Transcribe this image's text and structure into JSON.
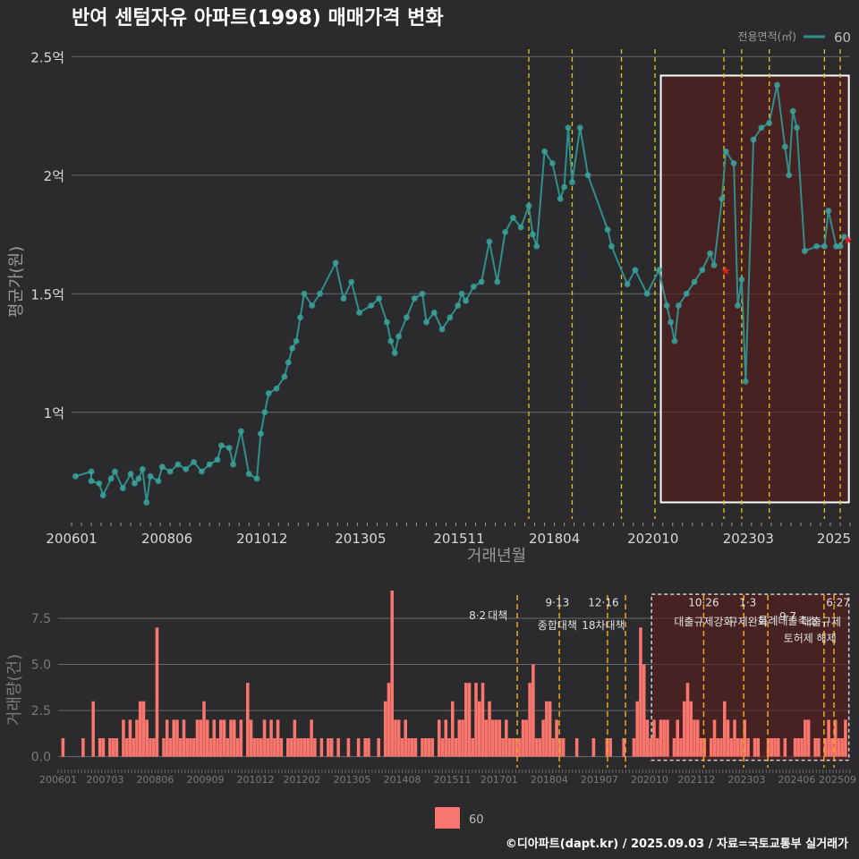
{
  "title": "반여 센텀자유 아파트(1998) 매매가격 변화",
  "footer": "©디아파트(dapt.kr) / 2025.09.03 / 자료=국토교통부 실거래가",
  "colors": {
    "background": "#2b2b2d",
    "grid": "#6a6a6a",
    "price_line": "#2f8f8a",
    "price_point": "#3aa39c",
    "volume_bar": "#f8766d",
    "policy_line": "#e6c619",
    "policy_line_lower": "#f0a81a",
    "highlight_fill": "#5a1d1d",
    "highlight_border": "#ffffff",
    "axis_text": "#d8d8d8",
    "muted_text": "#7a7a7a",
    "star": "#e02020"
  },
  "legend_top": {
    "title": "전용면적(㎡)",
    "label": "60"
  },
  "legend_bottom": {
    "label": "60"
  },
  "chart_data": [
    {
      "type": "line",
      "name": "price",
      "title": "반여 센텀자유 아파트(1998) 매매가격 변화",
      "xlabel": "거래년월",
      "ylabel": "평균가(원)",
      "xlim": [
        2006.0,
        2025.75
      ],
      "ylim": [
        0.55,
        2.55
      ],
      "yticks": [
        1.0,
        1.5,
        2.0,
        2.5
      ],
      "ytick_labels": [
        "1억",
        "1.5억",
        "2억",
        "2.5억"
      ],
      "xtick_values": [
        2006.0,
        2008.42,
        2010.83,
        2013.33,
        2015.83,
        2018.25,
        2020.75,
        2023.17,
        2025.67
      ],
      "xtick_labels": [
        "200601",
        "200806",
        "201012",
        "201305",
        "201511",
        "201804",
        "202010",
        "202303",
        "2025"
      ],
      "series": [
        {
          "name": "60",
          "points": [
            [
              2006.1,
              0.73
            ],
            [
              2006.5,
              0.75
            ],
            [
              2006.5,
              0.71
            ],
            [
              2006.7,
              0.7
            ],
            [
              2006.8,
              0.65
            ],
            [
              2007.0,
              0.72
            ],
            [
              2007.1,
              0.75
            ],
            [
              2007.3,
              0.68
            ],
            [
              2007.5,
              0.74
            ],
            [
              2007.6,
              0.7
            ],
            [
              2007.7,
              0.72
            ],
            [
              2007.8,
              0.76
            ],
            [
              2007.9,
              0.62
            ],
            [
              2008.0,
              0.73
            ],
            [
              2008.2,
              0.71
            ],
            [
              2008.3,
              0.77
            ],
            [
              2008.5,
              0.75
            ],
            [
              2008.7,
              0.78
            ],
            [
              2008.9,
              0.76
            ],
            [
              2009.1,
              0.79
            ],
            [
              2009.3,
              0.75
            ],
            [
              2009.5,
              0.78
            ],
            [
              2009.7,
              0.8
            ],
            [
              2009.8,
              0.86
            ],
            [
              2010.0,
              0.85
            ],
            [
              2010.1,
              0.78
            ],
            [
              2010.3,
              0.92
            ],
            [
              2010.5,
              0.74
            ],
            [
              2010.7,
              0.72
            ],
            [
              2010.8,
              0.91
            ],
            [
              2010.9,
              1.0
            ],
            [
              2011.0,
              1.08
            ],
            [
              2011.2,
              1.1
            ],
            [
              2011.4,
              1.15
            ],
            [
              2011.5,
              1.21
            ],
            [
              2011.6,
              1.27
            ],
            [
              2011.7,
              1.3
            ],
            [
              2011.8,
              1.4
            ],
            [
              2011.9,
              1.5
            ],
            [
              2012.1,
              1.45
            ],
            [
              2012.3,
              1.5
            ],
            [
              2012.7,
              1.63
            ],
            [
              2012.9,
              1.48
            ],
            [
              2013.1,
              1.55
            ],
            [
              2013.3,
              1.42
            ],
            [
              2013.6,
              1.45
            ],
            [
              2013.8,
              1.48
            ],
            [
              2014.0,
              1.38
            ],
            [
              2014.1,
              1.3
            ],
            [
              2014.2,
              1.25
            ],
            [
              2014.3,
              1.32
            ],
            [
              2014.5,
              1.4
            ],
            [
              2014.7,
              1.48
            ],
            [
              2014.9,
              1.5
            ],
            [
              2015.0,
              1.38
            ],
            [
              2015.2,
              1.42
            ],
            [
              2015.4,
              1.35
            ],
            [
              2015.6,
              1.4
            ],
            [
              2015.8,
              1.45
            ],
            [
              2015.9,
              1.5
            ],
            [
              2016.0,
              1.47
            ],
            [
              2016.2,
              1.53
            ],
            [
              2016.4,
              1.55
            ],
            [
              2016.6,
              1.72
            ],
            [
              2016.8,
              1.55
            ],
            [
              2017.0,
              1.76
            ],
            [
              2017.2,
              1.82
            ],
            [
              2017.4,
              1.78
            ],
            [
              2017.6,
              1.87
            ],
            [
              2017.7,
              1.75
            ],
            [
              2017.8,
              1.7
            ],
            [
              2018.0,
              2.1
            ],
            [
              2018.2,
              2.05
            ],
            [
              2018.4,
              1.9
            ],
            [
              2018.5,
              1.95
            ],
            [
              2018.6,
              2.2
            ],
            [
              2018.7,
              1.97
            ],
            [
              2018.9,
              2.2
            ],
            [
              2019.1,
              2.0
            ],
            [
              2019.6,
              1.77
            ],
            [
              2019.7,
              1.7
            ],
            [
              2020.1,
              1.54
            ],
            [
              2020.3,
              1.6
            ],
            [
              2020.6,
              1.5
            ],
            [
              2020.9,
              1.6
            ],
            [
              2021.1,
              1.45
            ],
            [
              2021.2,
              1.38
            ],
            [
              2021.3,
              1.3
            ],
            [
              2021.4,
              1.45
            ],
            [
              2021.6,
              1.5
            ],
            [
              2021.8,
              1.55
            ],
            [
              2022.0,
              1.6
            ],
            [
              2022.2,
              1.67
            ],
            [
              2022.3,
              1.62
            ],
            [
              2022.5,
              1.9
            ],
            [
              2022.6,
              2.1
            ],
            [
              2022.8,
              2.05
            ],
            [
              2022.9,
              1.45
            ],
            [
              2023.0,
              1.56
            ],
            [
              2023.1,
              1.13
            ],
            [
              2023.3,
              2.15
            ],
            [
              2023.5,
              2.2
            ],
            [
              2023.7,
              2.22
            ],
            [
              2023.9,
              2.38
            ],
            [
              2024.1,
              2.12
            ],
            [
              2024.2,
              2.0
            ],
            [
              2024.3,
              2.27
            ],
            [
              2024.4,
              2.2
            ],
            [
              2024.6,
              1.68
            ],
            [
              2024.9,
              1.7
            ],
            [
              2025.1,
              1.7
            ],
            [
              2025.2,
              1.85
            ],
            [
              2025.4,
              1.7
            ],
            [
              2025.5,
              1.7
            ],
            [
              2025.6,
              1.74
            ]
          ]
        }
      ],
      "markers": [
        {
          "label": "star",
          "x": 2022.6,
          "y": 1.6
        },
        {
          "label": "star",
          "x": 2025.7,
          "y": 1.73
        }
      ],
      "policy_lines_x": [
        2017.6,
        2018.7,
        2019.95,
        2020.8,
        2022.55,
        2023.0,
        2023.7,
        2025.1,
        2025.5
      ]
    },
    {
      "type": "bar",
      "name": "volume",
      "ylabel": "거래량(건)",
      "xlim": [
        2006.0,
        2025.75
      ],
      "ylim": [
        -0.6,
        9.0
      ],
      "yticks": [
        0.0,
        2.5,
        5.0,
        7.5
      ],
      "ytick_labels": [
        "0.0",
        "2.5",
        "5.0",
        "7.5"
      ],
      "xtick_values": [
        2006.0,
        2007.17,
        2008.42,
        2009.67,
        2010.92,
        2012.08,
        2013.33,
        2014.58,
        2015.83,
        2017.0,
        2018.25,
        2019.5,
        2020.75,
        2021.92,
        2023.17,
        2024.42,
        2025.67
      ],
      "xtick_labels": [
        "200601",
        "200703",
        "200806",
        "200909",
        "201012",
        "201202",
        "201305",
        "201408",
        "201511",
        "201701",
        "201804",
        "201907",
        "202010",
        "202112",
        "202303",
        "202406",
        "202509"
      ],
      "volumes": [
        1,
        0,
        0,
        0,
        0,
        0,
        1,
        0,
        0,
        3,
        0,
        1,
        1,
        0,
        1,
        1,
        1,
        0,
        2,
        1,
        2,
        1,
        2,
        3,
        3,
        2,
        1,
        1,
        7,
        0,
        1,
        2,
        1,
        2,
        2,
        1,
        2,
        1,
        1,
        1,
        2,
        2,
        3,
        2,
        1,
        2,
        1,
        2,
        2,
        1,
        2,
        2,
        1,
        2,
        0,
        4,
        2,
        1,
        1,
        1,
        2,
        1,
        2,
        1,
        2,
        1,
        0,
        1,
        1,
        2,
        1,
        1,
        1,
        1,
        2,
        1,
        0,
        1,
        0,
        1,
        1,
        0,
        1,
        0,
        0,
        1,
        0,
        0,
        1,
        0,
        1,
        1,
        0,
        0,
        1,
        0,
        3,
        4,
        9,
        2,
        2,
        1,
        2,
        1,
        1,
        1,
        0,
        1,
        1,
        1,
        1,
        0,
        2,
        1,
        2,
        1,
        3,
        1,
        2,
        2,
        4,
        4,
        1,
        4,
        3,
        4,
        2,
        3,
        2,
        2,
        2,
        1,
        2,
        1,
        1,
        1,
        1,
        2,
        2,
        4,
        5,
        1,
        1,
        2,
        3,
        3,
        1,
        2,
        1,
        1,
        0,
        0,
        0,
        1,
        0,
        0,
        0,
        0,
        1,
        0,
        0,
        0,
        1,
        1,
        0,
        0,
        0,
        1,
        0,
        0,
        1,
        3,
        7,
        5,
        2,
        1,
        2,
        1,
        2,
        2,
        2,
        0,
        1,
        2,
        1,
        3,
        4,
        3,
        2,
        2,
        1,
        1,
        0,
        1,
        2,
        1,
        1,
        3,
        2,
        1,
        2,
        1,
        1,
        2,
        1,
        0,
        1,
        1,
        0,
        0,
        1,
        1,
        1,
        1,
        0,
        1,
        0,
        0,
        1,
        1,
        1,
        2,
        2,
        0,
        1,
        1,
        0,
        1,
        2,
        1,
        2,
        1,
        1,
        2
      ],
      "policy_lines_x": [
        2017.45,
        2018.5,
        2019.7,
        2020.15,
        2022.1,
        2023.1,
        2023.7,
        2025.1,
        2025.35
      ],
      "annotations": [
        {
          "date": "8·2",
          "text": "대책"
        },
        {
          "date": "9·13",
          "text": "종합대책"
        },
        {
          "date": "12·16",
          "text": "18차대책"
        },
        {
          "date": "10·26",
          "text": "대출규제강화"
        },
        {
          "date": "1·3",
          "text": "규제완화"
        },
        {
          "date": "9·7",
          "text": "특례대출축소"
        },
        {
          "date": "6·27",
          "text": "대출규제"
        },
        {
          "date": "",
          "text": "토허제 해제"
        }
      ]
    }
  ]
}
